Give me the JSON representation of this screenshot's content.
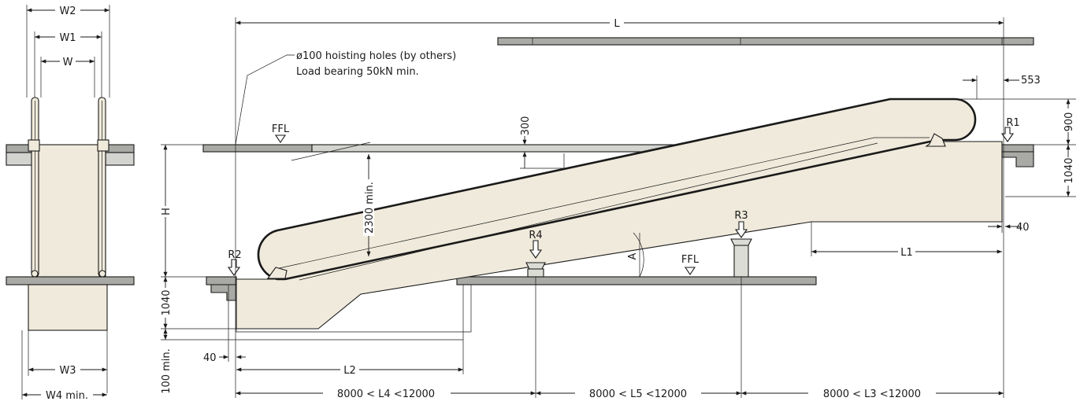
{
  "colors": {
    "body_fill": "#efeadb",
    "floor_fill": "#a9a9a6",
    "floor_light": "#d3d3d0",
    "support_fill": "#dcdcd6",
    "line": "#1a1a1a"
  },
  "front_view": {
    "W2": "W2",
    "W1": "W1",
    "W": "W",
    "W3": "W3",
    "W4": "W4 min."
  },
  "side_view": {
    "L": "L",
    "dim_553": "553",
    "dim_900": "900",
    "dim_1040_right": "1040",
    "dim_40_right": "40",
    "L1": "L1",
    "H": "H",
    "dim_1040_left": "1040",
    "dim_100": "100 min.",
    "dim_40_left": "40",
    "L2": "L2",
    "L4": "8000 < L4 <12000",
    "L5": "8000 < L5 <12000",
    "L3": "8000 < L3 <12000",
    "dim_300": "300",
    "dim_2300": "2300 min.",
    "angle": "A",
    "ffl_top": "FFL",
    "ffl_bottom": "FFL",
    "R1": "R1",
    "R2": "R2",
    "R3": "R3",
    "R4": "R4",
    "note_line1": "ø100 hoisting holes (by others)",
    "note_line2": "Load bearing 50kN min."
  }
}
